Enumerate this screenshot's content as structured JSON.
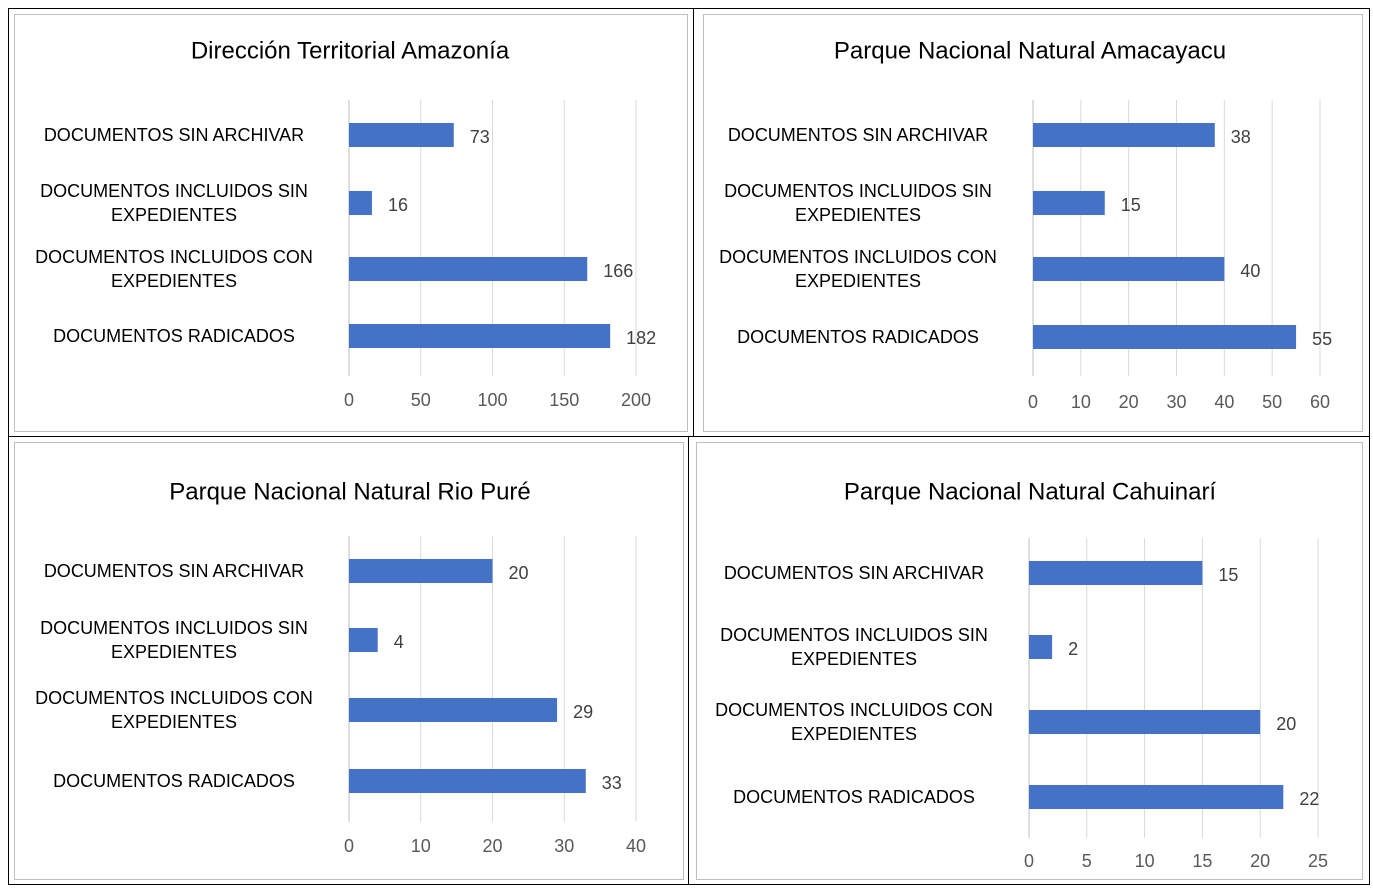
{
  "chart_data": [
    {
      "type": "barh",
      "title": "Dirección Territorial Amazonía",
      "categories": [
        "DOCUMENTOS SIN ARCHIVAR",
        "DOCUMENTOS INCLUIDOS SIN EXPEDIENTES",
        "DOCUMENTOS INCLUIDOS CON EXPEDIENTES",
        "DOCUMENTOS RADICADOS"
      ],
      "values": [
        73,
        16,
        166,
        182
      ],
      "color": "#4472c4",
      "xlim": [
        0,
        200
      ],
      "xticks": [
        0,
        50,
        100,
        150,
        200
      ],
      "grid": true
    },
    {
      "type": "barh",
      "title": "Parque Nacional Natural Amacayacu",
      "categories": [
        "DOCUMENTOS SIN ARCHIVAR",
        "DOCUMENTOS INCLUIDOS SIN EXPEDIENTES",
        "DOCUMENTOS INCLUIDOS CON EXPEDIENTES",
        "DOCUMENTOS RADICADOS"
      ],
      "values": [
        38,
        15,
        40,
        55
      ],
      "color": "#4472c4",
      "xlim": [
        0,
        60
      ],
      "xticks": [
        0,
        10,
        20,
        30,
        40,
        50,
        60
      ],
      "grid": true
    },
    {
      "type": "barh",
      "title": "Parque Nacional Natural Rio Puré",
      "categories": [
        "DOCUMENTOS SIN ARCHIVAR",
        "DOCUMENTOS INCLUIDOS SIN EXPEDIENTES",
        "DOCUMENTOS INCLUIDOS CON EXPEDIENTES",
        "DOCUMENTOS RADICADOS"
      ],
      "values": [
        20,
        4,
        29,
        33
      ],
      "color": "#4472c4",
      "xlim": [
        0,
        40
      ],
      "xticks": [
        0,
        10,
        20,
        30,
        40
      ],
      "grid": true
    },
    {
      "type": "barh",
      "title": "Parque Nacional Natural Cahuinarí",
      "categories": [
        "DOCUMENTOS SIN ARCHIVAR",
        "DOCUMENTOS INCLUIDOS SIN EXPEDIENTES",
        "DOCUMENTOS INCLUIDOS CON EXPEDIENTES",
        "DOCUMENTOS RADICADOS"
      ],
      "values": [
        15,
        2,
        20,
        22
      ],
      "color": "#4472c4",
      "xlim": [
        0,
        25
      ],
      "xticks": [
        0,
        5,
        10,
        15,
        20,
        25
      ],
      "grid": true
    }
  ]
}
